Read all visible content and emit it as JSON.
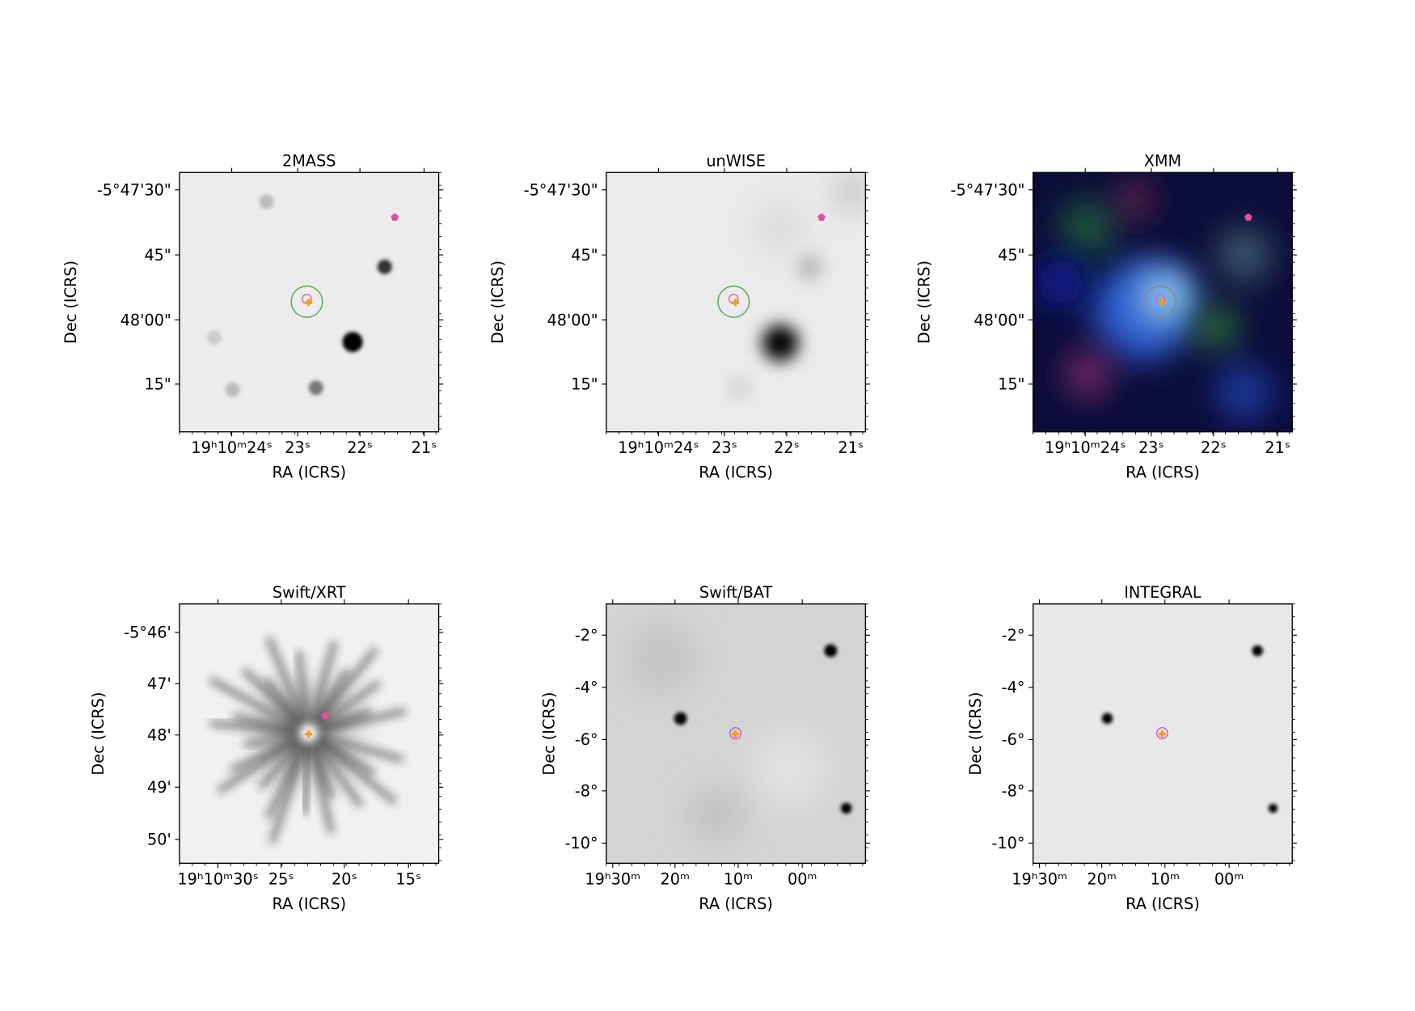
{
  "panels": [
    {
      "title": "2MASS",
      "xlabel": "RA (ICRS)",
      "ylabel": "Dec (ICRS)",
      "xticks": [
        "19ʰ10ᵐ24ˢ",
        "23ˢ",
        "22ˢ",
        "21ˢ"
      ],
      "yticks": [
        "-5°47'30\"",
        "45\"",
        "48'00\"",
        "15\""
      ]
    },
    {
      "title": "unWISE",
      "xlabel": "RA (ICRS)",
      "ylabel": "Dec (ICRS)",
      "xticks": [
        "19ʰ10ᵐ24ˢ",
        "23ˢ",
        "22ˢ",
        "21ˢ"
      ],
      "yticks": [
        "-5°47'30\"",
        "45\"",
        "48'00\"",
        "15\""
      ]
    },
    {
      "title": "XMM",
      "xlabel": "RA (ICRS)",
      "ylabel": "Dec (ICRS)",
      "xticks": [
        "19ʰ10ᵐ24ˢ",
        "23ˢ",
        "22ˢ",
        "21ˢ"
      ],
      "yticks": [
        "-5°47'30\"",
        "45\"",
        "48'00\"",
        "15\""
      ]
    },
    {
      "title": "Swift/XRT",
      "xlabel": "RA (ICRS)",
      "ylabel": "Dec (ICRS)",
      "xticks": [
        "19ʰ10ᵐ30ˢ",
        "25ˢ",
        "20ˢ",
        "15ˢ"
      ],
      "yticks": [
        "-5°46'",
        "47'",
        "48'",
        "49'",
        "50'"
      ]
    },
    {
      "title": "Swift/BAT",
      "xlabel": "RA (ICRS)",
      "ylabel": "Dec (ICRS)",
      "xticks": [
        "19ʰ30ᵐ",
        "20ᵐ",
        "10ᵐ",
        "00ᵐ"
      ],
      "yticks": [
        "-2°",
        "-4°",
        "-6°",
        "-8°",
        "-10°"
      ]
    },
    {
      "title": "INTEGRAL",
      "xlabel": "RA (ICRS)",
      "ylabel": "Dec (ICRS)",
      "xticks": [
        "19ʰ30ᵐ",
        "20ᵐ",
        "10ᵐ",
        "00ᵐ"
      ],
      "yticks": [
        "-2°",
        "-4°",
        "-6°",
        "-8°",
        "-10°"
      ]
    }
  ]
}
